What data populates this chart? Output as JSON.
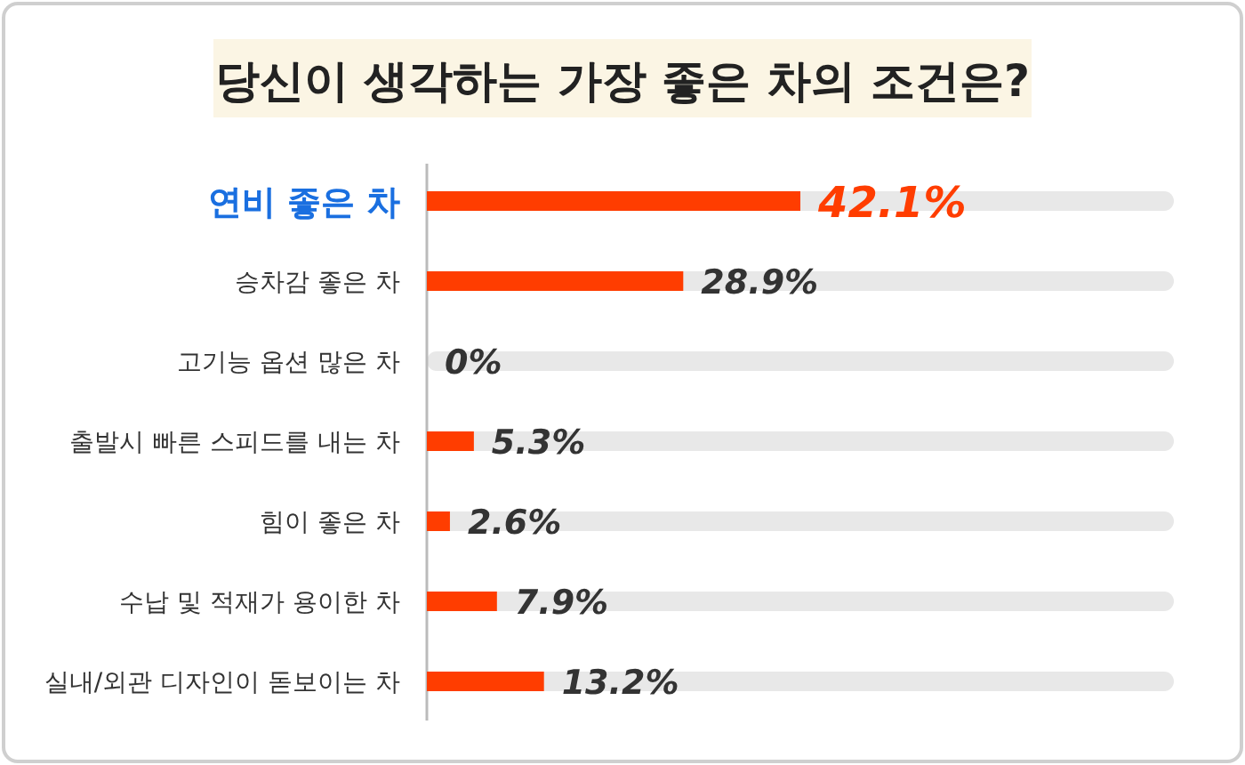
{
  "chart_data": {
    "type": "bar",
    "orientation": "horizontal",
    "title": "당신이 생각하는 가장 좋은 차의 조건은?",
    "categories": [
      "연비 좋은 차",
      "승차감 좋은 차",
      "고기능 옵션 많은 차",
      "출발시 빠른 스피드를 내는 차",
      "힘이 좋은 차",
      "수납 및 적재가 용이한 차",
      "실내/외관 디자인이 돋보이는 차"
    ],
    "values": [
      42.1,
      28.9,
      0,
      5.3,
      2.6,
      7.9,
      13.2
    ],
    "value_labels": [
      "42.1%",
      "28.9%",
      "0%",
      "5.3%",
      "2.6%",
      "7.9%",
      "13.2%"
    ],
    "color": "#ff3d00",
    "grid": "y"
  }
}
